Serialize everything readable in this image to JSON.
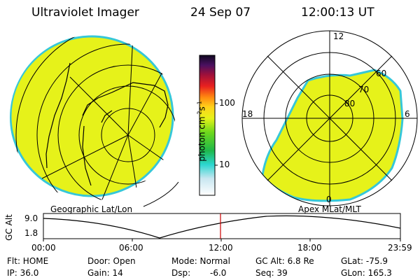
{
  "header": {
    "title": "Ultraviolet Imager",
    "date": "24 Sep 07",
    "time": "12:00:13 UT"
  },
  "colors": {
    "image_fill": "#e6f21a",
    "image_edge": "#36c7d8",
    "accent_line": "#cc0000"
  },
  "colorbar": {
    "label": "photon cm-2s-1",
    "label_base": "photon cm",
    "label_sup1": "-2",
    "label_mid": "s",
    "label_sup2": "-1",
    "ticks": [
      "100",
      "10"
    ],
    "scale": "log"
  },
  "left_panel": {
    "projection_label": "Geographic Lat/Lon"
  },
  "right_panel": {
    "projection_label": "Apex MLat/MLT",
    "mlt_labels": {
      "top": "12",
      "left": "18",
      "right": "6",
      "bottom": "0"
    },
    "lat_labels": [
      "60",
      "70",
      "80"
    ]
  },
  "altitude_plot": {
    "ylabel": "GC Alt",
    "y_ticks": [
      "9.0",
      "1.8"
    ],
    "x_ticks": [
      "00:00",
      "06:00",
      "12:00",
      "18:00",
      "23:59"
    ],
    "current_time_hours": 12.0
  },
  "status": {
    "flt": "Flt: HOME",
    "ip": "IP: 36.0",
    "door": "Door: Open",
    "gain": "Gain: 14",
    "mode": "Mode: Normal",
    "dsp": "Dsp:",
    "dsp_value": "-6.0",
    "gc_alt": "GC Alt: 6.8 Re",
    "seq": "Seq: 39",
    "glat": "GLat: -75.9",
    "glon": "GLon: 165.3"
  }
}
